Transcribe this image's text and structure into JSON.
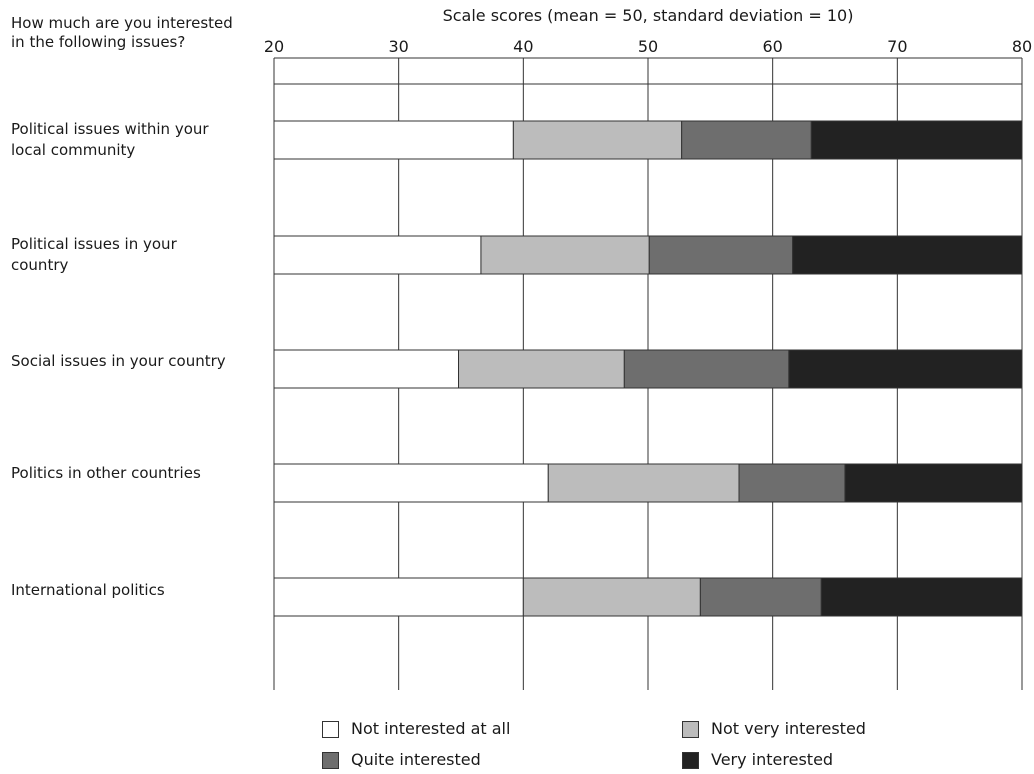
{
  "chart_data": {
    "type": "bar",
    "stacked": true,
    "orientation": "horizontal",
    "title": "Scale scores (mean = 50, standard deviation = 10)",
    "row_header": "How much are you interested in the following issues?",
    "xlim": [
      20,
      80
    ],
    "xticks": [
      20,
      30,
      40,
      50,
      60,
      70,
      80
    ],
    "grid": true,
    "legend_position": "bottom",
    "categories": [
      "Political issues within your local community",
      "Political issues in your country",
      "Social issues in your country",
      "Politics in other countries",
      "International politics"
    ],
    "series": [
      {
        "name": "Not interested at all",
        "color": "#ffffff",
        "ends": [
          39.2,
          36.6,
          34.8,
          42.0,
          40.0
        ]
      },
      {
        "name": "Not very interested",
        "color": "#bcbcbc",
        "ends": [
          52.7,
          50.1,
          48.1,
          57.3,
          54.2
        ]
      },
      {
        "name": "Quite interested",
        "color": "#6e6e6e",
        "ends": [
          63.1,
          61.6,
          61.3,
          65.8,
          63.9
        ]
      },
      {
        "name": "Very interested",
        "color": "#222222",
        "ends": [
          80,
          80,
          80,
          80,
          80
        ]
      }
    ]
  }
}
